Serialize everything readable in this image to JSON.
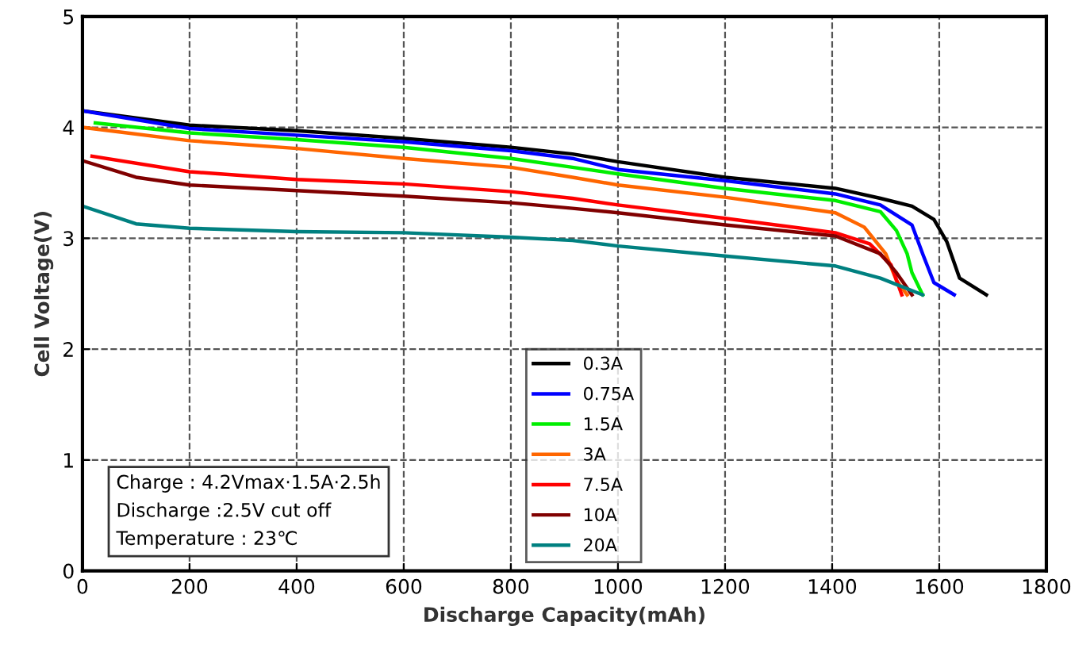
{
  "chart_data": {
    "type": "line",
    "xlabel": "Discharge Capacity(mAh)",
    "ylabel": "Cell Voltage(V)",
    "xlim": [
      0,
      1800
    ],
    "xticks": [
      0,
      200,
      400,
      600,
      800,
      1000,
      1200,
      1400,
      1600,
      1800
    ],
    "ylim": [
      0,
      5
    ],
    "yticks": [
      0,
      1,
      2,
      3,
      4,
      5
    ],
    "grid": true,
    "legend": "bottom",
    "marker": "none",
    "line_style": "solid",
    "annotations": [
      "Charge : 4.2Vmax·1.5A·2.5h",
      "Discharge :2.5V cut off",
      "Temperature : 23℃"
    ],
    "series": [
      {
        "name": "0.3A",
        "color": "#000000",
        "x": [
          0,
          200,
          400,
          600,
          800,
          915,
          1000,
          1200,
          1406,
          1490,
          1549,
          1590,
          1614,
          1638,
          1688
        ],
        "values": [
          4.15,
          4.02,
          3.97,
          3.9,
          3.82,
          3.76,
          3.69,
          3.55,
          3.45,
          3.36,
          3.29,
          3.17,
          2.97,
          2.64,
          2.49
        ]
      },
      {
        "name": "0.75A",
        "color": "#0000ff",
        "x": [
          0,
          200,
          400,
          600,
          800,
          915,
          1000,
          1200,
          1406,
          1490,
          1549,
          1569,
          1590,
          1628
        ],
        "values": [
          4.15,
          3.99,
          3.93,
          3.87,
          3.79,
          3.72,
          3.62,
          3.52,
          3.4,
          3.3,
          3.12,
          2.86,
          2.6,
          2.49
        ]
      },
      {
        "name": "1.5A",
        "color": "#00ee00",
        "x": [
          24,
          200,
          400,
          600,
          800,
          915,
          1000,
          1200,
          1406,
          1490,
          1520,
          1540,
          1549,
          1569
        ],
        "values": [
          4.04,
          3.95,
          3.89,
          3.82,
          3.72,
          3.64,
          3.58,
          3.45,
          3.34,
          3.24,
          3.07,
          2.86,
          2.69,
          2.49
        ]
      },
      {
        "name": "3A",
        "color": "#ff6600",
        "x": [
          0,
          200,
          400,
          600,
          800,
          915,
          1000,
          1200,
          1406,
          1460,
          1500,
          1520,
          1540
        ],
        "values": [
          4.0,
          3.88,
          3.81,
          3.72,
          3.64,
          3.55,
          3.48,
          3.37,
          3.23,
          3.1,
          2.86,
          2.62,
          2.49
        ]
      },
      {
        "name": "7.5A",
        "color": "#ff0000",
        "x": [
          18,
          200,
          400,
          600,
          800,
          915,
          1000,
          1200,
          1406,
          1470,
          1510,
          1530
        ],
        "values": [
          3.74,
          3.6,
          3.53,
          3.49,
          3.42,
          3.36,
          3.3,
          3.18,
          3.05,
          2.95,
          2.76,
          2.49
        ]
      },
      {
        "name": "10A",
        "color": "#800000",
        "x": [
          0,
          100,
          200,
          400,
          600,
          800,
          915,
          1000,
          1200,
          1406,
          1490,
          1520,
          1549
        ],
        "values": [
          3.7,
          3.55,
          3.48,
          3.43,
          3.38,
          3.32,
          3.27,
          3.23,
          3.12,
          3.02,
          2.86,
          2.69,
          2.49
        ]
      },
      {
        "name": "20A",
        "color": "#008080",
        "x": [
          0,
          100,
          200,
          400,
          600,
          800,
          915,
          1000,
          1200,
          1406,
          1490,
          1569
        ],
        "values": [
          3.29,
          3.13,
          3.09,
          3.06,
          3.05,
          3.01,
          2.98,
          2.93,
          2.84,
          2.75,
          2.64,
          2.49
        ]
      }
    ]
  }
}
